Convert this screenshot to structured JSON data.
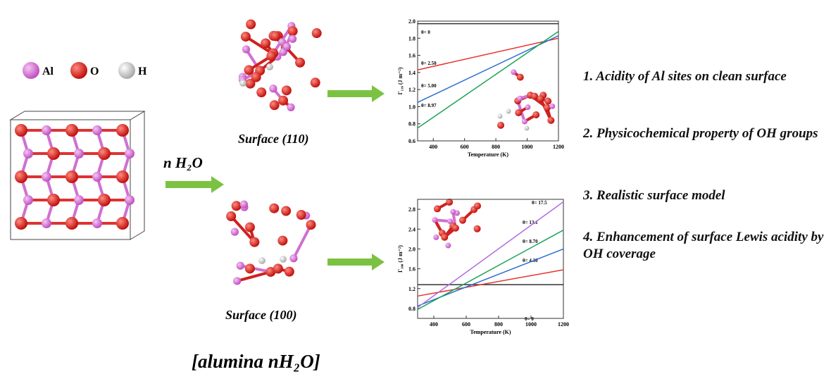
{
  "legend": {
    "items": [
      "Al",
      "O",
      "H"
    ]
  },
  "reaction_label": "n H₂O",
  "surfaces": [
    "Surface (110)",
    "Surface (100)"
  ],
  "footer": "[alumina nH₂O]",
  "points": [
    "1. Acidity of Al sites on clean surface",
    "2. Physicochemical property of OH groups",
    "3. Realistic surface model",
    "4. Enhancement of  surface Lewis acidity by OH coverage"
  ],
  "chart_data": [
    {
      "type": "line",
      "xlabel": "Temperature (K)",
      "ylabel": "Γ₁₁₀ (J m⁻²)",
      "x": [
        300,
        1200
      ],
      "xlim": [
        300,
        1200
      ],
      "xticks": [
        400,
        600,
        800,
        1000,
        1200
      ],
      "ylim": [
        0.6,
        2.0
      ],
      "yticks": [
        {
          "value": 0.6,
          "label": "0.6"
        },
        {
          "value": 0.8,
          "label": "0.8"
        },
        {
          "value": 1,
          "label": "1.0"
        },
        {
          "value": 1.2,
          "label": "1.2"
        },
        {
          "value": 1.4,
          "label": "1.4"
        },
        {
          "value": 1.6,
          "label": "1.6"
        },
        {
          "value": 1.8,
          "label": "1.8"
        },
        {
          "value": 2,
          "label": "2.0"
        }
      ],
      "series": [
        {
          "name": "θ= 0",
          "color": "#333333",
          "values": [
            1.97,
            1.97
          ]
        },
        {
          "name": "θ= 2.50",
          "color": "#e8322e",
          "values": [
            1.43,
            1.8
          ]
        },
        {
          "name": "θ= 5.00",
          "color": "#2c6fd1",
          "values": [
            1.05,
            1.83
          ]
        },
        {
          "name": "θ= 8.97",
          "color": "#1fa35a",
          "values": [
            0.75,
            1.88
          ]
        }
      ]
    },
    {
      "type": "line",
      "xlabel": "Temperature (K)",
      "ylabel": "Γ₁₀₀ (J m⁻²)",
      "x": [
        300,
        1200
      ],
      "xlim": [
        300,
        1200
      ],
      "xticks": [
        400,
        600,
        800,
        1000,
        1200
      ],
      "ylim": [
        0.6,
        3.0
      ],
      "yticks": [
        {
          "value": 0.8,
          "label": "0.8"
        },
        {
          "value": 1.2,
          "label": "1.2"
        },
        {
          "value": 1.6,
          "label": "1.6"
        },
        {
          "value": 2,
          "label": "2.0"
        },
        {
          "value": 2.4,
          "label": "2.4"
        },
        {
          "value": 2.8,
          "label": "2.8"
        }
      ],
      "series": [
        {
          "name": "θ= 0",
          "color": "#333333",
          "values": [
            1.28,
            1.28
          ]
        },
        {
          "name": "θ= 4.30",
          "color": "#e8322e",
          "values": [
            1.05,
            1.58
          ]
        },
        {
          "name": "θ= 8.70",
          "color": "#2c6fd1",
          "values": [
            0.85,
            2.0
          ]
        },
        {
          "name": "θ= 13.1",
          "color": "#1fa35a",
          "values": [
            0.78,
            2.38
          ]
        },
        {
          "name": "θ= 17.5",
          "color": "#b06de0",
          "values": [
            0.82,
            2.95
          ]
        }
      ]
    }
  ]
}
